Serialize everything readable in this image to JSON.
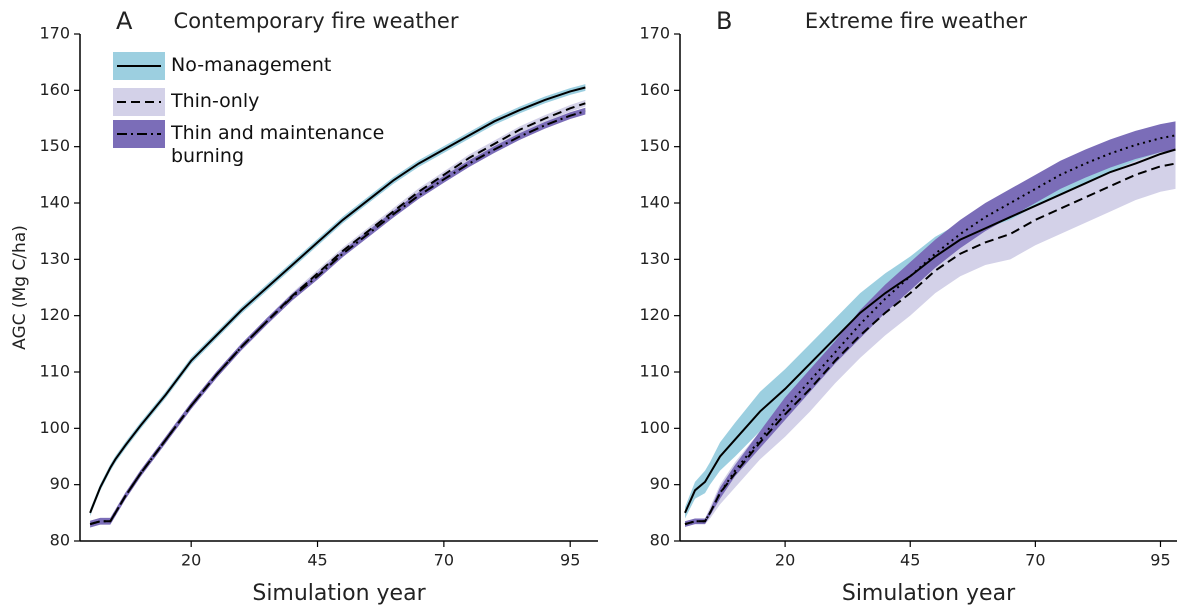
{
  "chart_data": [
    {
      "type": "line",
      "panel_label": "A",
      "title": "Contemporary fire weather",
      "xlabel": "Simulation year",
      "ylabel": "AGC (Mg C/ha)",
      "x": [
        0,
        2,
        4,
        5,
        7,
        10,
        15,
        20,
        25,
        30,
        35,
        40,
        45,
        50,
        55,
        60,
        65,
        70,
        75,
        80,
        85,
        90,
        95,
        98
      ],
      "xlim": [
        -2,
        100.5
      ],
      "ylim": [
        80,
        170
      ],
      "xticks": [
        20,
        45,
        70,
        95
      ],
      "yticks": [
        80,
        90,
        100,
        110,
        120,
        130,
        140,
        150,
        160,
        170
      ],
      "line_color": "#000000",
      "legend": "upper left",
      "series": [
        {
          "name": "No-management",
          "color": "#9ccfe0",
          "dash": "solid",
          "values": [
            85,
            89.5,
            93,
            94.5,
            97,
            100.5,
            106,
            112,
            116.5,
            121,
            125,
            129,
            133,
            137,
            140.5,
            144,
            147,
            149.5,
            152,
            154.5,
            156.5,
            158.3,
            159.8,
            160.5
          ],
          "lower": [
            84.4,
            88.9,
            92.4,
            93.9,
            96.4,
            99.9,
            105.4,
            111.4,
            115.9,
            120.4,
            124.4,
            128.4,
            132.4,
            136.4,
            139.9,
            143.4,
            146.4,
            148.9,
            151.4,
            153.9,
            155.9,
            157.7,
            159.2,
            159.9
          ],
          "upper": [
            85.6,
            90.1,
            93.6,
            95.1,
            97.6,
            101.1,
            106.6,
            112.6,
            117.1,
            121.6,
            125.6,
            129.6,
            133.6,
            137.6,
            141.1,
            144.6,
            147.6,
            150.1,
            152.6,
            155.1,
            157.1,
            158.9,
            160.4,
            161.1
          ]
        },
        {
          "name": "Thin-only",
          "color": "#d3d1e8",
          "dash": "dashed",
          "values": [
            83,
            83.5,
            83.5,
            85,
            88,
            92,
            98,
            104,
            109.5,
            114.5,
            119,
            123.5,
            127.5,
            131.5,
            135,
            138.5,
            142,
            145,
            148,
            150.5,
            153,
            155,
            156.8,
            157.7
          ],
          "lower": [
            82.4,
            82.9,
            82.9,
            84.4,
            87.4,
            91.4,
            97.4,
            103.4,
            108.9,
            113.9,
            118.4,
            122.9,
            126.9,
            130.9,
            134.4,
            137.9,
            141.4,
            144.4,
            147.4,
            149.9,
            152.4,
            154.4,
            156.2,
            157.1
          ],
          "upper": [
            83.6,
            84.1,
            84.1,
            85.6,
            88.6,
            92.6,
            98.6,
            104.6,
            110.1,
            115.1,
            119.6,
            124.1,
            128.1,
            132.1,
            135.6,
            139.1,
            142.6,
            145.6,
            148.6,
            151.1,
            153.6,
            155.6,
            157.4,
            158.3
          ]
        },
        {
          "name": "Thin and maintenance burning",
          "color": "#7b6db8",
          "dash": "dashdot",
          "values": [
            83,
            83.5,
            83.5,
            85,
            88,
            92,
            98,
            104,
            109.5,
            114.5,
            119,
            123.3,
            127,
            131,
            134.5,
            138,
            141.3,
            144.2,
            147,
            149.5,
            151.8,
            153.8,
            155.5,
            156.3
          ],
          "lower": [
            82.4,
            82.9,
            82.9,
            84.4,
            87.4,
            91.4,
            97.4,
            103.4,
            108.9,
            113.9,
            118.4,
            122.7,
            126.4,
            130.4,
            133.9,
            137.4,
            140.7,
            143.6,
            146.4,
            148.9,
            151.2,
            153.2,
            154.9,
            155.7
          ],
          "upper": [
            83.6,
            84.1,
            84.1,
            85.6,
            88.6,
            92.6,
            98.6,
            104.6,
            110.1,
            115.1,
            119.6,
            123.9,
            127.6,
            131.6,
            135.1,
            138.6,
            141.9,
            144.8,
            147.6,
            150.1,
            152.4,
            154.4,
            156.1,
            156.9
          ]
        }
      ]
    },
    {
      "type": "line",
      "panel_label": "B",
      "title": "Extreme fire weather",
      "xlabel": "Simulation year",
      "x": [
        0,
        2,
        4,
        5,
        7,
        10,
        15,
        20,
        25,
        30,
        35,
        40,
        45,
        50,
        55,
        60,
        65,
        70,
        75,
        80,
        85,
        90,
        95,
        98
      ],
      "xlim": [
        -1,
        98.3
      ],
      "ylim": [
        80,
        170
      ],
      "xticks": [
        20,
        45,
        70,
        95
      ],
      "yticks": [
        80,
        90,
        100,
        110,
        120,
        130,
        140,
        150,
        160,
        170
      ],
      "line_color": "#000000",
      "series": [
        {
          "color": "#9ccfe0",
          "dash": "solid",
          "values": [
            85,
            89,
            90.5,
            92,
            95,
            98,
            103,
            107,
            111.5,
            116,
            120.5,
            124,
            127,
            130.5,
            133.5,
            135.5,
            137.5,
            139.5,
            141.5,
            143.5,
            145.5,
            147,
            148.7,
            149.5
          ],
          "lower": [
            84,
            87.5,
            88.5,
            90,
            92.5,
            95,
            99.5,
            103.5,
            108,
            112.5,
            117,
            120.5,
            123.5,
            127,
            130.5,
            132.5,
            134.5,
            136.5,
            138.5,
            140.5,
            142.5,
            144,
            145.7,
            146.5
          ],
          "upper": [
            86,
            90.5,
            92.5,
            94,
            97.5,
            101,
            106.5,
            110.5,
            115,
            119.5,
            124,
            127.5,
            130.5,
            134,
            136.5,
            138.5,
            140.5,
            142.5,
            144.5,
            146.5,
            148.5,
            150,
            151.7,
            152.5
          ]
        },
        {
          "color": "#d3d1e8",
          "dash": "dashed",
          "values": [
            83,
            83.5,
            83.5,
            85,
            88.5,
            92,
            97.5,
            102.5,
            107,
            112,
            116.5,
            120.5,
            124,
            128,
            131,
            133,
            134.5,
            137,
            139,
            141,
            143,
            145,
            146.5,
            147
          ],
          "lower": [
            82.5,
            83,
            83,
            84,
            86.5,
            89.5,
            94.5,
            98.5,
            103,
            108,
            112.5,
            116.5,
            120,
            124,
            127,
            129,
            130,
            132.5,
            134.5,
            136.5,
            138.5,
            140.5,
            142,
            142.5
          ],
          "upper": [
            83.5,
            84,
            84,
            86,
            90,
            94,
            99.5,
            105,
            109.5,
            114.5,
            119,
            123,
            126.5,
            130.5,
            133.5,
            135.5,
            137,
            139.5,
            141.5,
            143.5,
            145.5,
            147.5,
            149,
            149.5
          ]
        },
        {
          "color": "#7b6db8",
          "dash": "dotted",
          "values": [
            83,
            83.5,
            83.5,
            85,
            88.5,
            92.5,
            98,
            103.5,
            108.5,
            113.5,
            118.5,
            123,
            127,
            131,
            134.5,
            137.5,
            140,
            142.5,
            145,
            147,
            148.8,
            150.3,
            151.5,
            152
          ],
          "lower": [
            82.5,
            83,
            83,
            84.5,
            87.5,
            91.5,
            96.5,
            101.5,
            106.5,
            111.5,
            116,
            120.5,
            124.5,
            128.5,
            132,
            135,
            137.5,
            140,
            142.5,
            144.5,
            146.3,
            147.8,
            149,
            149.5
          ],
          "upper": [
            83.5,
            84,
            84,
            85.5,
            89.5,
            93.5,
            99.5,
            105.5,
            110.5,
            115.5,
            121,
            125.5,
            129.5,
            133.5,
            137,
            140,
            142.5,
            145,
            147.5,
            149.5,
            151.3,
            152.8,
            154,
            154.5
          ]
        }
      ]
    }
  ]
}
